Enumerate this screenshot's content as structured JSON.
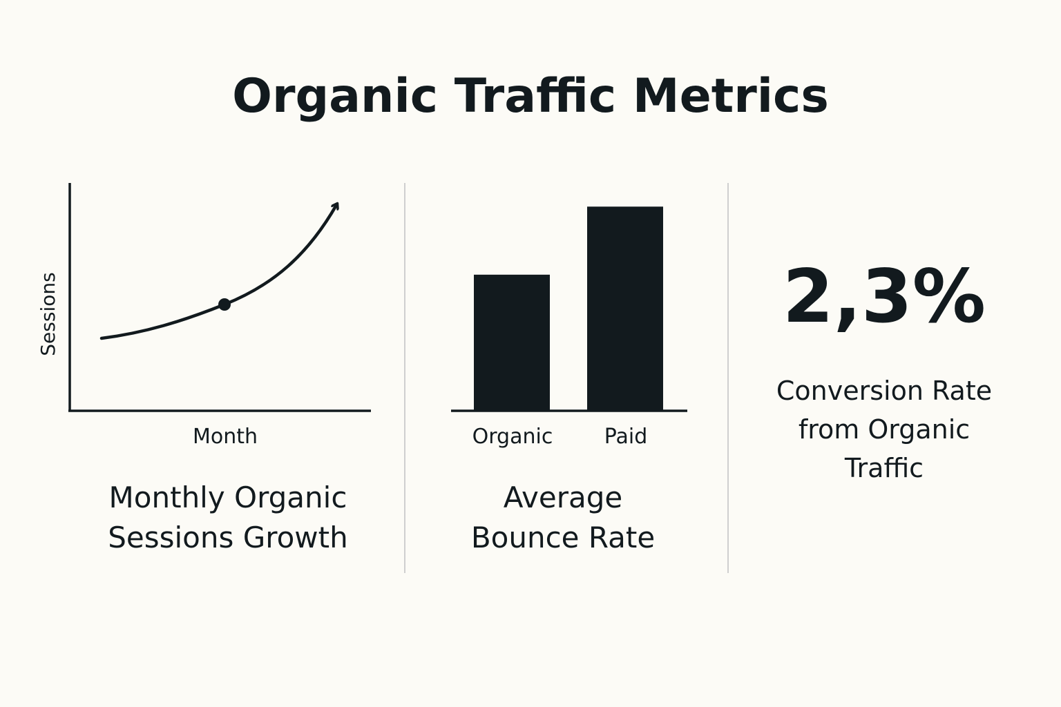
{
  "title": "Organic Traffic Metrics",
  "colors": {
    "ink": "#121a1e",
    "background": "#fcfbf6",
    "divider": "#cfcfcf"
  },
  "chart_data": [
    {
      "type": "line",
      "title": "Monthly Organic Sessions Growth",
      "xlabel": "Month",
      "ylabel": "Sessions",
      "trend": "increasing",
      "grid": false,
      "arrow_end": true
    },
    {
      "type": "bar",
      "title": "Average Bounce Rate",
      "categories": [
        "Organic",
        "Paid"
      ],
      "values": [
        62,
        93
      ],
      "ylim": [
        0,
        100
      ],
      "grid": false
    }
  ],
  "kpi": {
    "value": "2,3%",
    "label_line1": "Conversion Rate",
    "label_line2": "from Organic",
    "label_line3": "Traffic"
  }
}
